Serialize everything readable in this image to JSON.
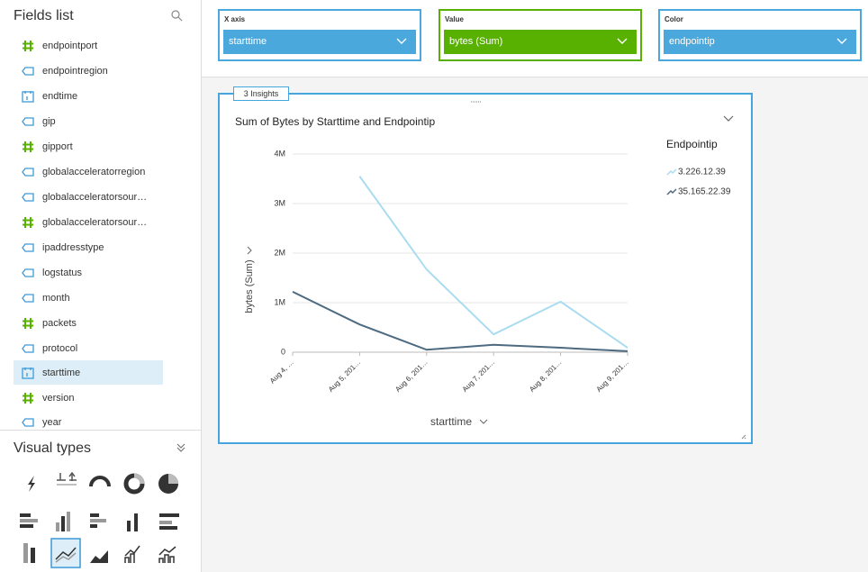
{
  "sidebar": {
    "title": "Fields list",
    "fields": [
      "endpointport",
      "endpointregion",
      "endtime",
      "gip",
      "gipport",
      "globalacceleratorregion",
      "globalacceleratorsour…",
      "globalacceleratorsour…",
      "ipaddresstype",
      "logstatus",
      "month",
      "packets",
      "protocol",
      "starttime",
      "version",
      "year"
    ],
    "visual_types_title": "Visual types"
  },
  "field_wells": [
    {
      "label": "X axis",
      "value": "starttime"
    },
    {
      "label": "Value",
      "value": "bytes (Sum)"
    },
    {
      "label": "Color",
      "value": "endpointip"
    }
  ],
  "insights_tab": "3 Insights",
  "chart_data": {
    "type": "line",
    "title": "Sum of Bytes by Starttime and Endpointip",
    "x_label": "starttime",
    "y_label": "bytes (Sum)",
    "legend_title": "Endpointip",
    "categories": [
      "Aug 4, …",
      "Aug 5, 201…",
      "Aug 6, 201…",
      "Aug 7, 201…",
      "Aug 8, 201…",
      "Aug 9, 201…"
    ],
    "series": [
      {
        "name": "3.226.12.39",
        "color": "#a9dcf0",
        "values": [
          null,
          3550000,
          1670000,
          360000,
          1020000,
          90000
        ]
      },
      {
        "name": "35.165.22.39",
        "color": "#4d6a80",
        "values": [
          1220000,
          560000,
          50000,
          150000,
          90000,
          20000
        ]
      }
    ],
    "ylim": [
      0,
      4000000
    ],
    "yticks": [
      0,
      {
        "value": 1000000,
        "label": "1M"
      },
      {
        "value": 2000000,
        "label": "2M"
      },
      {
        "value": 3000000,
        "label": "3M"
      },
      {
        "value": 4000000,
        "label": "4M"
      }
    ],
    "grid": true
  }
}
